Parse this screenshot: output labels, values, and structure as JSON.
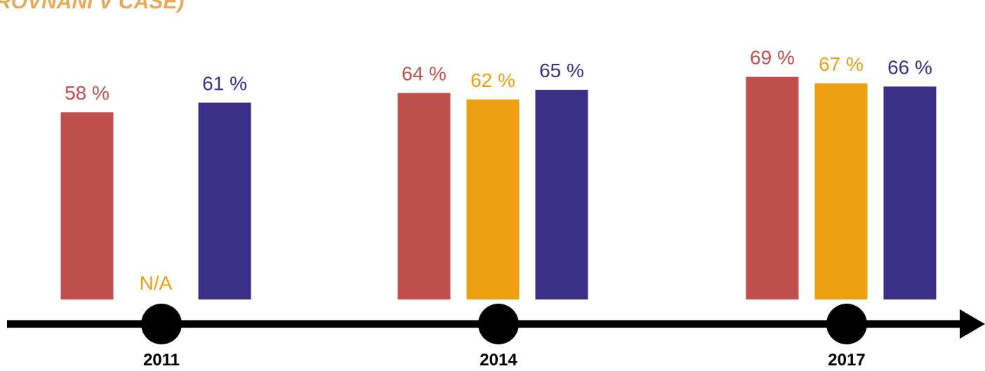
{
  "title": "ROVNÁNÍ V ČASE)",
  "colors": {
    "title": "#E6AA5A",
    "axis": "#000000",
    "series": [
      "#C0504D",
      "#EDA011",
      "#3B2F88"
    ]
  },
  "chart_data": {
    "type": "bar",
    "title": "ROVNÁNÍ V ČASE)",
    "categories": [
      "2011",
      "2014",
      "2017"
    ],
    "series": [
      {
        "values": [
          58,
          64,
          69
        ],
        "labels": [
          "58 %",
          "64 %",
          "69 %"
        ]
      },
      {
        "values": [
          null,
          62,
          67
        ],
        "labels": [
          "N/A",
          "62 %",
          "67 %"
        ]
      },
      {
        "values": [
          61,
          65,
          66
        ],
        "labels": [
          "61 %",
          "65 %",
          "66 %"
        ]
      }
    ],
    "ylim": [
      0,
      70
    ],
    "axis": "timeline arrow",
    "grid": false,
    "legend": "none"
  }
}
